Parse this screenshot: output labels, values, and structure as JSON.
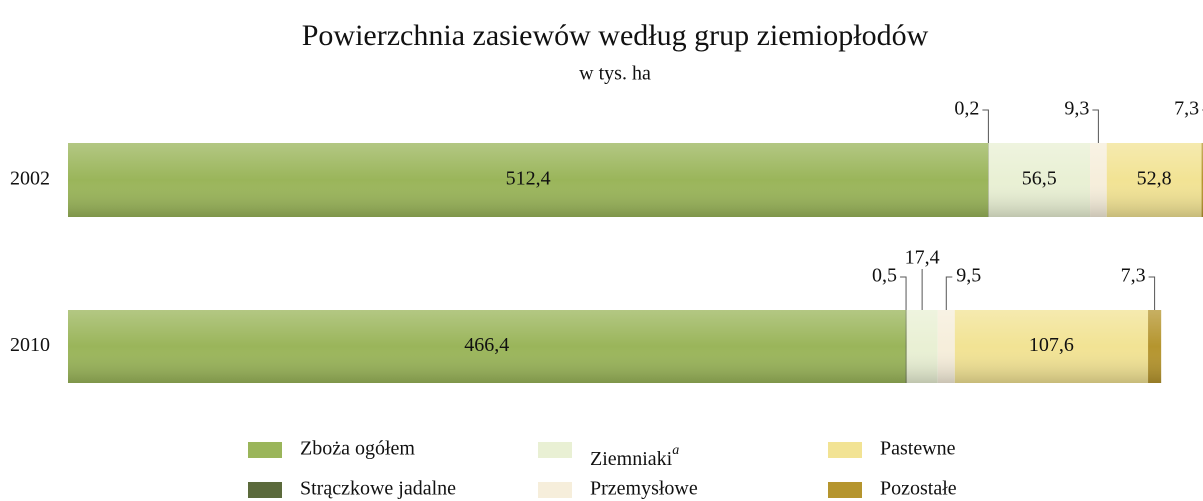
{
  "chart_data": {
    "type": "stacked_barh",
    "title": "Powierzchnia zasiewów według grup ziemiopłodów",
    "subtitle": "w tys. ha",
    "categories": [
      "2002",
      "2010"
    ],
    "xlim": [
      0,
      632
    ],
    "series": [
      {
        "name": "Zboża ogółem",
        "color": "#9ab55a",
        "values": [
          512.4,
          466.4
        ],
        "value_labels": [
          "512,4",
          "466,4"
        ]
      },
      {
        "name": "Strączkowe jadalne",
        "color": "#5b6a3c",
        "values": [
          0.2,
          0.5
        ],
        "value_labels": [
          "0,2",
          "0,5"
        ]
      },
      {
        "name": "Ziemniaki",
        "name_superscript": "a",
        "color": "#e9f0d4",
        "values": [
          56.5,
          17.4
        ],
        "value_labels": [
          "56,5",
          "17,4"
        ]
      },
      {
        "name": "Przemysłowe",
        "color": "#f6eedb",
        "values": [
          9.3,
          9.5
        ],
        "value_labels": [
          "9,3",
          "9,5"
        ]
      },
      {
        "name": "Pastewne",
        "color": "#f2e394",
        "values": [
          52.8,
          107.6
        ],
        "value_labels": [
          "52,8",
          "107,6"
        ]
      },
      {
        "name": "Pozostałe",
        "color": "#b5952e",
        "values": [
          7.3,
          7.3
        ],
        "value_labels": [
          "7,3",
          "7,3"
        ]
      }
    ]
  }
}
